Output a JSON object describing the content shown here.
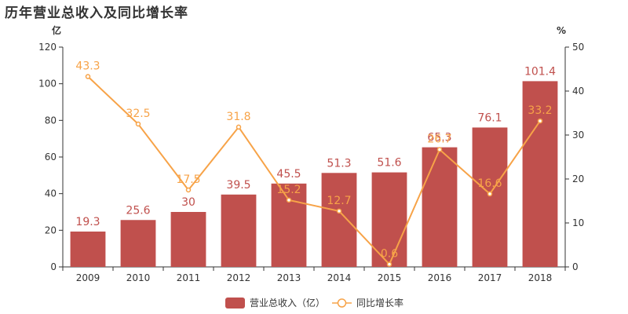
{
  "chart_data": {
    "type": "bar",
    "title": "历年营业总收入及同比增长率",
    "categories": [
      "2009",
      "2010",
      "2011",
      "2012",
      "2013",
      "2014",
      "2015",
      "2016",
      "2017",
      "2018"
    ],
    "series": [
      {
        "name": "营业总收入（亿）",
        "type": "bar",
        "axis": "left",
        "values": [
          19.3,
          25.6,
          30,
          39.5,
          45.5,
          51.3,
          51.6,
          65.3,
          76.1,
          101.4
        ],
        "labels": [
          "19.3",
          "25.6",
          "30",
          "39.5",
          "45.5",
          "51.3",
          "51.6",
          "65.3",
          "76.1",
          "101.4"
        ],
        "color": "#c0504d"
      },
      {
        "name": "同比增长率",
        "type": "line",
        "axis": "right",
        "values": [
          43.3,
          32.5,
          17.5,
          31.8,
          15.2,
          12.7,
          0.6,
          26.7,
          16.6,
          33.2
        ],
        "labels": [
          "43.3",
          "32.5",
          "17.5",
          "31.8",
          "15.2",
          "12.7",
          "0.6",
          "26.7",
          "16.6",
          "33.2"
        ],
        "color": "#f7a348"
      }
    ],
    "y_left": {
      "unit": "亿",
      "min": 0,
      "max": 120,
      "ticks": [
        0,
        20,
        40,
        60,
        80,
        100,
        120
      ]
    },
    "y_right": {
      "unit": "%",
      "min": 0,
      "max": 50,
      "ticks": [
        0,
        10,
        20,
        30,
        40,
        50
      ]
    },
    "legend_position": "bottom-center",
    "grid": false
  }
}
